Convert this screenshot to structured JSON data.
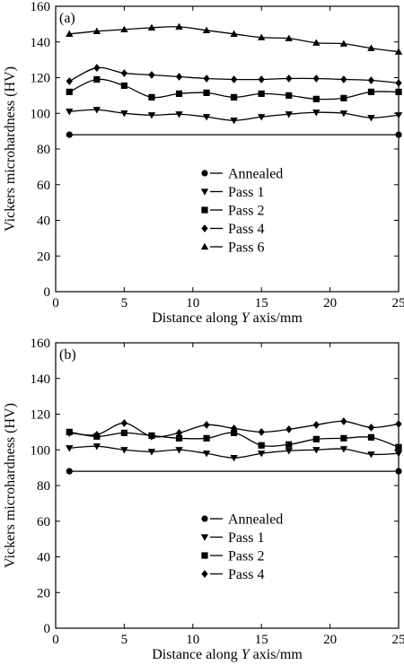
{
  "chart_data": [
    {
      "type": "line",
      "panel_label": "(a)",
      "xlabel_prefix": "Distance along ",
      "xlabel_var": "Y",
      "xlabel_suffix": " axis/mm",
      "ylabel": "Vickers microhardness (HV)",
      "xlim": [
        0,
        25
      ],
      "ylim": [
        0,
        160
      ],
      "xticks": [
        0,
        5,
        10,
        15,
        20,
        25
      ],
      "yticks": [
        0,
        20,
        40,
        60,
        80,
        100,
        120,
        140,
        160
      ],
      "legend_position": "center",
      "series": [
        {
          "name": "Annealed",
          "marker": "circle",
          "x": [
            1,
            25
          ],
          "y": [
            88,
            88
          ]
        },
        {
          "name": "Pass 1",
          "marker": "triangle-down",
          "x": [
            1,
            3,
            5,
            7,
            9,
            11,
            13,
            15,
            17,
            19,
            21,
            23,
            25
          ],
          "y": [
            101,
            102,
            100,
            99,
            99.5,
            98,
            96,
            98,
            99.5,
            100.5,
            100,
            97.5,
            99
          ]
        },
        {
          "name": "Pass 2",
          "marker": "square",
          "x": [
            1,
            3,
            5,
            7,
            9,
            11,
            13,
            15,
            17,
            19,
            21,
            23,
            25
          ],
          "y": [
            112,
            119,
            115.5,
            109,
            111,
            111.5,
            109,
            111,
            110,
            108,
            108.5,
            112,
            112
          ]
        },
        {
          "name": "Pass 4",
          "marker": "diamond",
          "x": [
            1,
            3,
            5,
            7,
            9,
            11,
            13,
            15,
            17,
            19,
            21,
            23,
            25
          ],
          "y": [
            118,
            125.5,
            122.5,
            121.5,
            120.5,
            119.5,
            119,
            119,
            119.5,
            119.5,
            119,
            118.5,
            117
          ]
        },
        {
          "name": "Pass 6",
          "marker": "triangle-up",
          "x": [
            1,
            3,
            5,
            7,
            9,
            11,
            13,
            15,
            17,
            19,
            21,
            23,
            25
          ],
          "y": [
            144.5,
            146,
            147,
            148,
            148.5,
            146.5,
            144.5,
            142.5,
            142,
            139.5,
            139,
            136.5,
            134.5
          ]
        }
      ]
    },
    {
      "type": "line",
      "panel_label": "(b)",
      "xlabel_prefix": "Distance along ",
      "xlabel_var": "Y",
      "xlabel_suffix": " axis/mm",
      "ylabel": "Vickers microhardness (HV)",
      "xlim": [
        0,
        25
      ],
      "ylim": [
        0,
        160
      ],
      "xticks": [
        0,
        5,
        10,
        15,
        20,
        25
      ],
      "yticks": [
        0,
        20,
        40,
        60,
        80,
        100,
        120,
        140,
        160
      ],
      "legend_position": "center",
      "series": [
        {
          "name": "Annealed",
          "marker": "circle",
          "x": [
            1,
            25
          ],
          "y": [
            88,
            88
          ]
        },
        {
          "name": "Pass 1",
          "marker": "triangle-down",
          "x": [
            1,
            3,
            5,
            7,
            9,
            11,
            13,
            15,
            17,
            19,
            21,
            23,
            25
          ],
          "y": [
            101,
            102,
            100,
            99,
            100,
            98,
            95.5,
            98,
            99.5,
            100,
            100.5,
            97.5,
            98
          ]
        },
        {
          "name": "Pass 2",
          "marker": "square",
          "x": [
            1,
            3,
            5,
            7,
            9,
            11,
            13,
            15,
            17,
            19,
            21,
            23,
            25
          ],
          "y": [
            110,
            107.5,
            109.5,
            108,
            106.5,
            106.5,
            109.5,
            102.5,
            103,
            106,
            106.5,
            107,
            101.5
          ]
        },
        {
          "name": "Pass 4",
          "marker": "diamond",
          "x": [
            1,
            3,
            5,
            7,
            9,
            11,
            13,
            15,
            17,
            19,
            21,
            23,
            25
          ],
          "y": [
            109.5,
            108.5,
            115,
            107.5,
            109.5,
            114,
            112,
            110,
            111.5,
            114,
            116,
            112.5,
            114.5
          ]
        }
      ]
    }
  ]
}
